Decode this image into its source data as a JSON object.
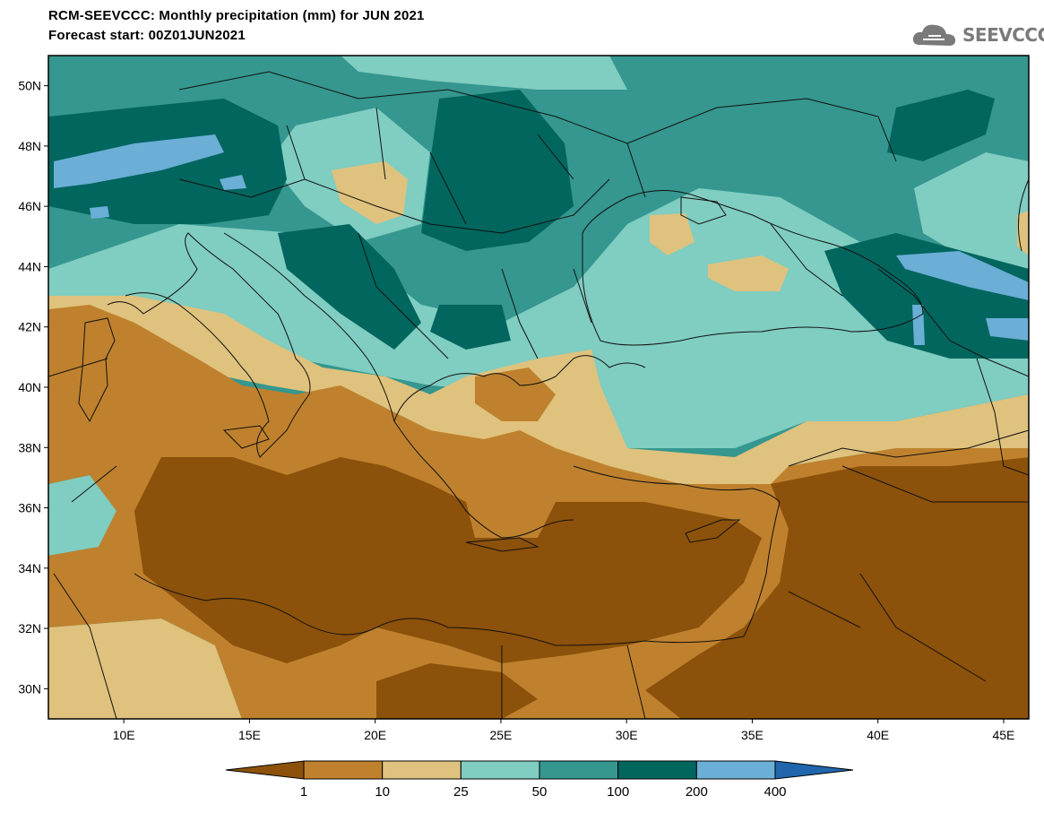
{
  "header": {
    "title": "RCM-SEEVCCC: Monthly precipitation (mm) for JUN 2021",
    "subtitle": "Forecast start: 00Z01JUN2021",
    "logo_text": "SEEVCCC"
  },
  "map": {
    "lon_range": [
      7,
      46
    ],
    "lat_range": [
      29,
      51
    ],
    "lat_ticks": [
      {
        "value": 50,
        "label": "50N"
      },
      {
        "value": 48,
        "label": "48N"
      },
      {
        "value": 46,
        "label": "46N"
      },
      {
        "value": 44,
        "label": "44N"
      },
      {
        "value": 42,
        "label": "42N"
      },
      {
        "value": 40,
        "label": "40N"
      },
      {
        "value": 38,
        "label": "38N"
      },
      {
        "value": 36,
        "label": "36N"
      },
      {
        "value": 34,
        "label": "34N"
      },
      {
        "value": 32,
        "label": "32N"
      },
      {
        "value": 30,
        "label": "30N"
      }
    ],
    "lon_ticks": [
      {
        "value": 10,
        "label": "10E"
      },
      {
        "value": 15,
        "label": "15E"
      },
      {
        "value": 20,
        "label": "20E"
      },
      {
        "value": 25,
        "label": "25E"
      },
      {
        "value": 30,
        "label": "30E"
      },
      {
        "value": 35,
        "label": "35E"
      },
      {
        "value": 40,
        "label": "40E"
      },
      {
        "value": 45,
        "label": "45E"
      }
    ]
  },
  "colorbar": {
    "levels": [
      "1",
      "10",
      "25",
      "50",
      "100",
      "200",
      "400"
    ],
    "colors": [
      "#8c510a",
      "#bf812d",
      "#dfc27d",
      "#80cdc1",
      "#35978f",
      "#01665e",
      "#6baed6",
      "#2166ac"
    ]
  },
  "colors": {
    "c0": "#8c510a",
    "c1": "#bf812d",
    "c2": "#dfc27d",
    "c3": "#80cdc1",
    "c4": "#35978f",
    "c5": "#01665e",
    "c6": "#6baed6"
  }
}
